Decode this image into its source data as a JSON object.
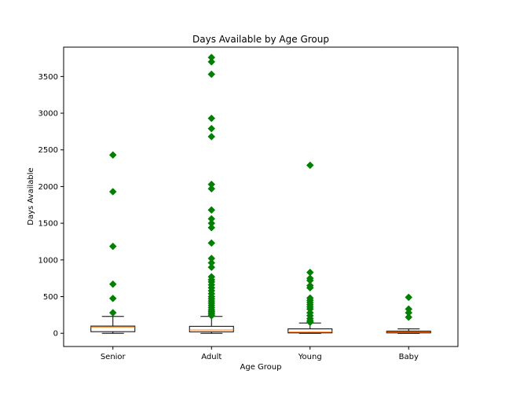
{
  "chart_data": {
    "type": "box",
    "title": "Days Available by Age Group",
    "xlabel": "Age Group",
    "ylabel": "Days Available",
    "ylim": [
      -180,
      3900
    ],
    "yticks": [
      0,
      500,
      1000,
      1500,
      2000,
      2500,
      3000,
      3500
    ],
    "grid": false,
    "colors": {
      "box_edge": "#000000",
      "median": "#ff7f0e",
      "outlier": "#008000"
    },
    "categories": [
      "Senior",
      "Adult",
      "Young",
      "Baby"
    ],
    "boxes": [
      {
        "name": "Senior",
        "min": 0,
        "q1": 22,
        "median": 85,
        "q3": 98,
        "max": 230,
        "outliers": [
          280,
          475,
          670,
          1185,
          1930,
          2430
        ]
      },
      {
        "name": "Adult",
        "min": 0,
        "q1": 20,
        "median": 45,
        "q3": 95,
        "max": 230,
        "outliers": [
          240,
          260,
          280,
          300,
          320,
          350,
          380,
          410,
          440,
          470,
          500,
          540,
          580,
          620,
          660,
          700,
          730,
          770,
          900,
          960,
          1020,
          1230,
          1440,
          1500,
          1560,
          1680,
          1970,
          2030,
          2680,
          2790,
          2930,
          3530,
          3700,
          3760
        ]
      },
      {
        "name": "Young",
        "min": 0,
        "q1": 5,
        "median": 20,
        "q3": 60,
        "max": 140,
        "outliers": [
          150,
          170,
          200,
          240,
          280,
          330,
          360,
          390,
          420,
          450,
          480,
          620,
          650,
          720,
          750,
          830,
          2290
        ]
      },
      {
        "name": "Baby",
        "min": 0,
        "q1": 5,
        "median": 18,
        "q3": 30,
        "max": 60,
        "outliers": [
          220,
          280,
          330,
          490
        ]
      }
    ]
  }
}
